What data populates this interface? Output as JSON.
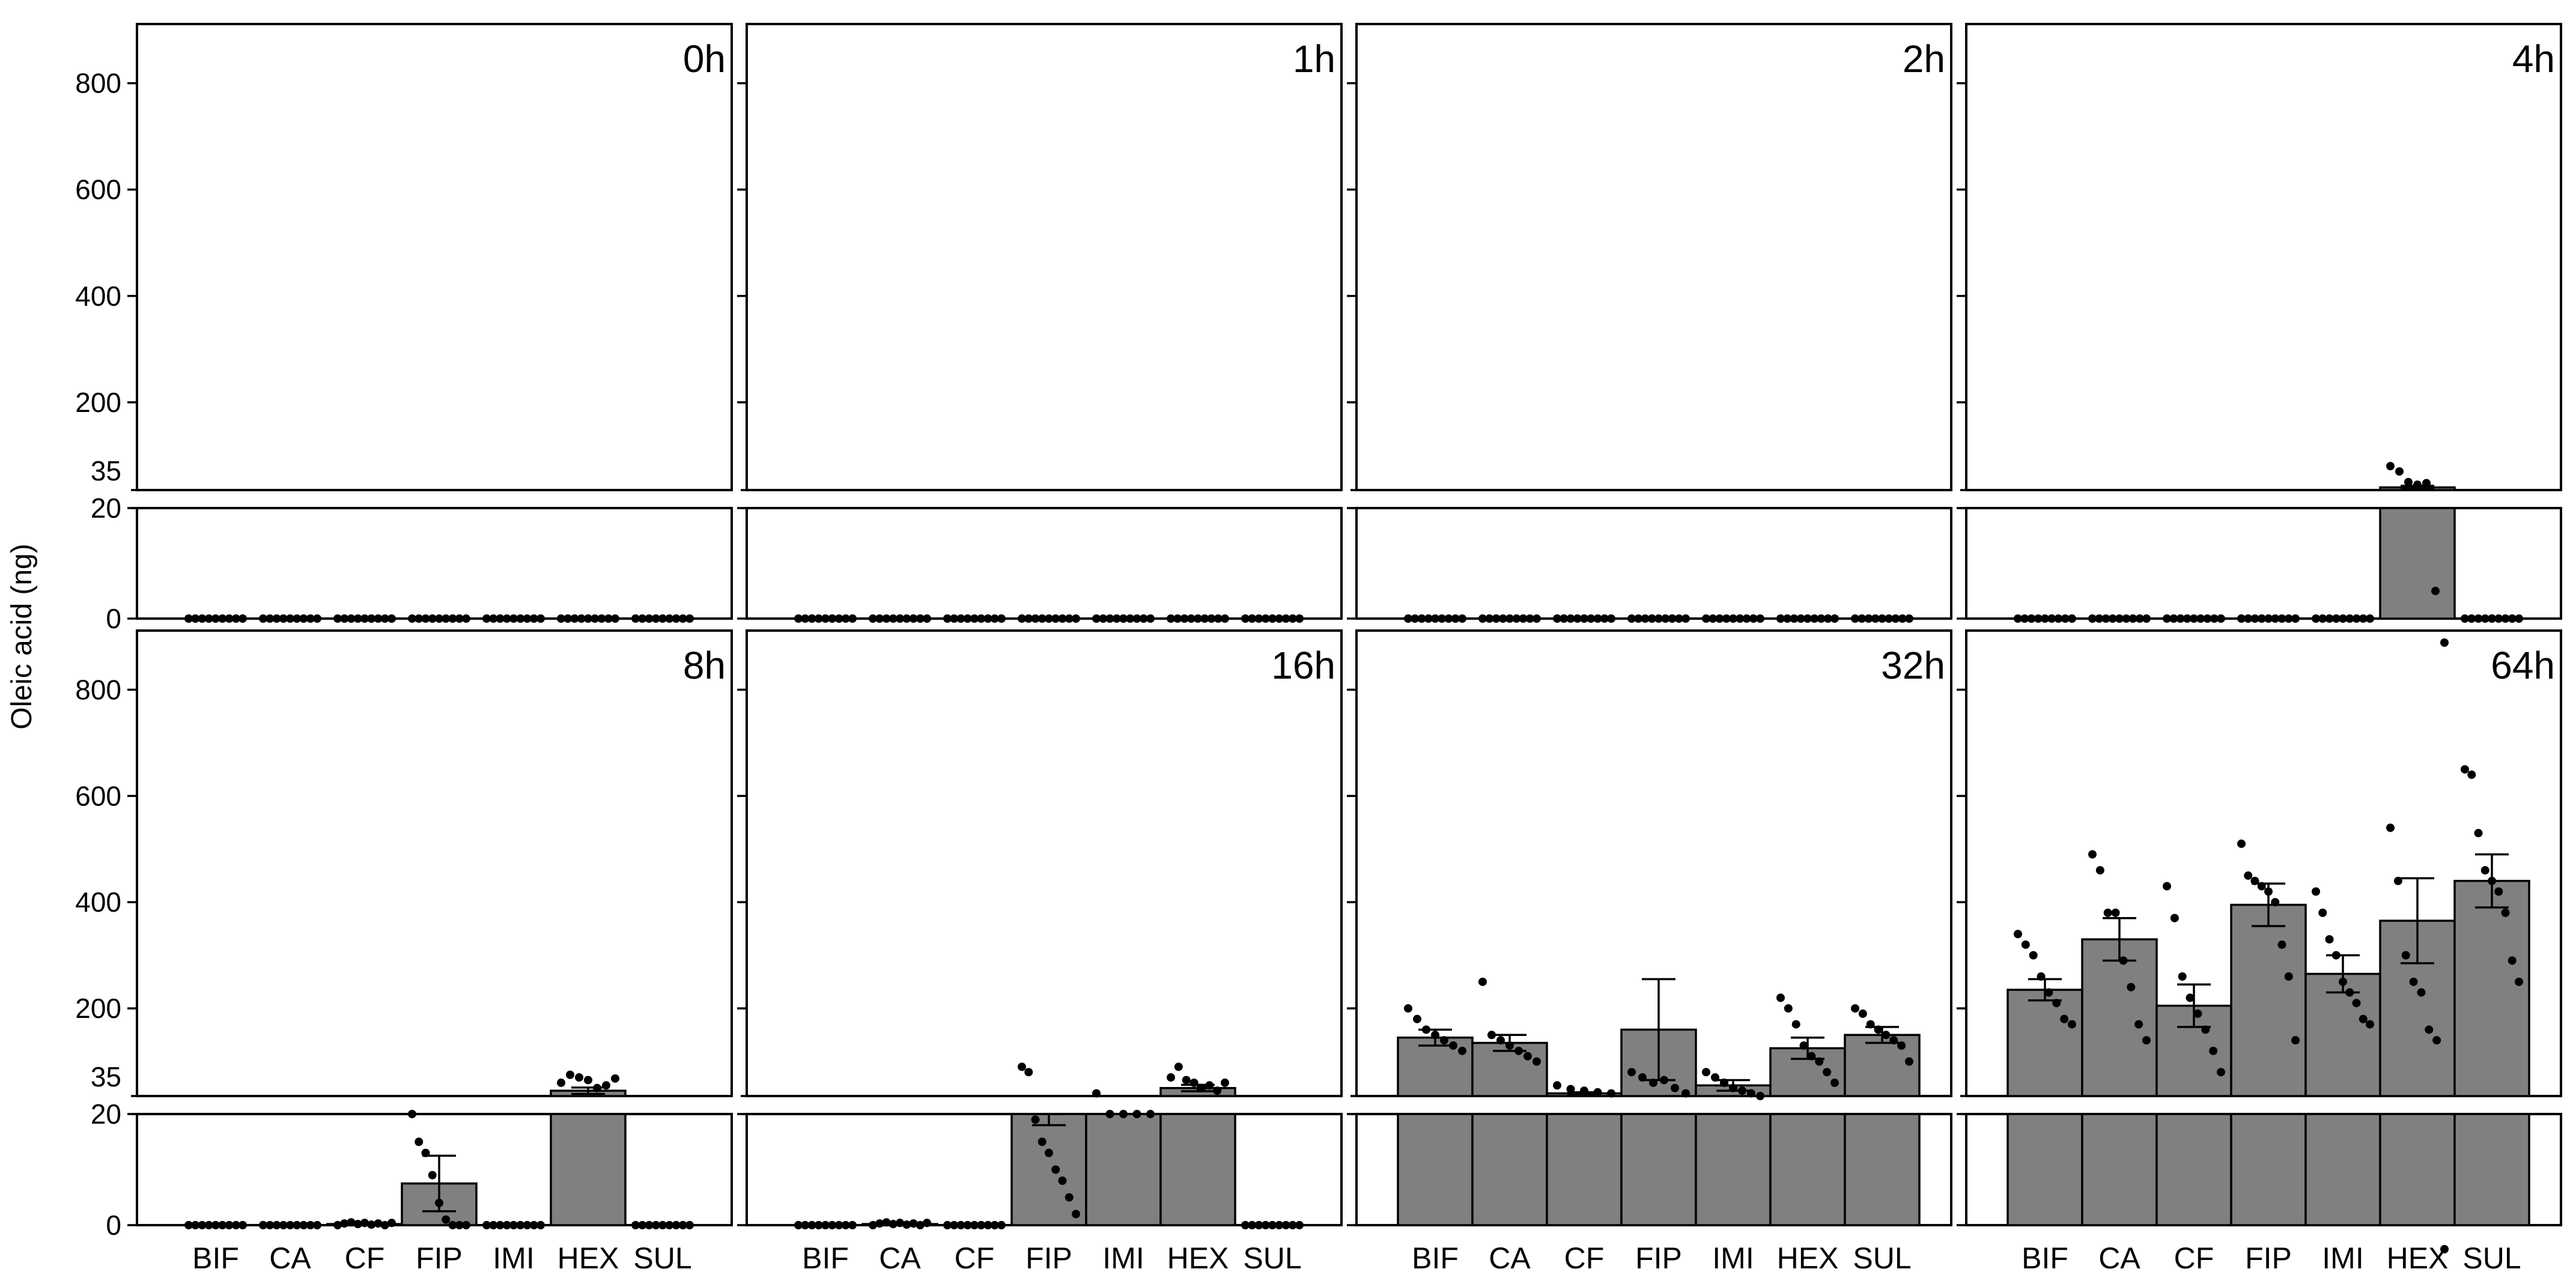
{
  "chart_data": {
    "type": "bar",
    "ylabel": "Oleic acid (ng)",
    "categories": [
      "BIF",
      "CA",
      "CF",
      "FIP",
      "IMI",
      "HEX",
      "SUL"
    ],
    "y_axis": {
      "lower_segment": {
        "range": [
          0,
          20
        ],
        "ticks": [
          "0",
          "20"
        ]
      },
      "upper_segment": {
        "range": [
          35,
          900
        ],
        "ticks": [
          "35",
          "200",
          "400",
          "600",
          "800"
        ]
      },
      "axis_break": "between 20 and 35"
    },
    "panel_layout": "2 rows x 4 columns",
    "panels": [
      {
        "label": "0h",
        "values": [
          0,
          0,
          0,
          0,
          0,
          0,
          0
        ],
        "errors": [
          0,
          0,
          0,
          0,
          0,
          0,
          0
        ],
        "points": [
          [
            0,
            0,
            0,
            0,
            0,
            0,
            0,
            0,
            0
          ],
          [
            0,
            0,
            0,
            0,
            0,
            0,
            0,
            0,
            0
          ],
          [
            0,
            0,
            0,
            0,
            0,
            0,
            0,
            0,
            0
          ],
          [
            0,
            0,
            0,
            0,
            0,
            0,
            0,
            0,
            0
          ],
          [
            0,
            0,
            0,
            0,
            0,
            0,
            0,
            0,
            0
          ],
          [
            0,
            0,
            0,
            0,
            0,
            0,
            0,
            0,
            0
          ],
          [
            0,
            0,
            0,
            0,
            0,
            0,
            0,
            0,
            0
          ]
        ]
      },
      {
        "label": "1h",
        "values": [
          0,
          0,
          0,
          0,
          0,
          0,
          0
        ],
        "errors": [
          0,
          0,
          0,
          0,
          0,
          0,
          0
        ],
        "points": [
          [
            0,
            0,
            0,
            0,
            0,
            0,
            0,
            0,
            0
          ],
          [
            0,
            0,
            0,
            0,
            0,
            0,
            0,
            0,
            0
          ],
          [
            0,
            0,
            0,
            0,
            0,
            0,
            0,
            0,
            0
          ],
          [
            0,
            0,
            0,
            0,
            0,
            0,
            0,
            0,
            0
          ],
          [
            0,
            0,
            0,
            0,
            0,
            0,
            0,
            0,
            0
          ],
          [
            0,
            0,
            0,
            0,
            0,
            0,
            0,
            0,
            0
          ],
          [
            0,
            0,
            0,
            0,
            0,
            0,
            0,
            0,
            0
          ]
        ]
      },
      {
        "label": "2h",
        "values": [
          0,
          0,
          0,
          0,
          0,
          0,
          0
        ],
        "errors": [
          0,
          0,
          0,
          0,
          0,
          0,
          0
        ],
        "points": [
          [
            0,
            0,
            0,
            0,
            0,
            0,
            0,
            0,
            0
          ],
          [
            0,
            0,
            0,
            0,
            0,
            0,
            0,
            0,
            0
          ],
          [
            0,
            0,
            0,
            0,
            0,
            0,
            0,
            0,
            0
          ],
          [
            0,
            0,
            0,
            0,
            0,
            0,
            0,
            0,
            0
          ],
          [
            0,
            0,
            0,
            0,
            0,
            0,
            0,
            0,
            0
          ],
          [
            0,
            0,
            0,
            0,
            0,
            0,
            0,
            0,
            0
          ],
          [
            0,
            0,
            0,
            0,
            0,
            0,
            0,
            0,
            0
          ]
        ]
      },
      {
        "label": "4h",
        "values": [
          0,
          0,
          0,
          0,
          0,
          40,
          0
        ],
        "errors": [
          0,
          0,
          0,
          0,
          0,
          3,
          0
        ],
        "points": [
          [
            0,
            0,
            0,
            0,
            0,
            0,
            0,
            0,
            0
          ],
          [
            0,
            0,
            0,
            0,
            0,
            0,
            0,
            0,
            0
          ],
          [
            0,
            0,
            0,
            0,
            0,
            0,
            0,
            0,
            0
          ],
          [
            0,
            0,
            0,
            0,
            0,
            0,
            0,
            0,
            0
          ],
          [
            0,
            0,
            0,
            0,
            0,
            0,
            0,
            0,
            0
          ],
          [
            80,
            70,
            50,
            45,
            48,
            5,
            -5
          ],
          [
            0,
            0,
            0,
            0,
            0,
            0,
            0,
            0,
            0
          ]
        ]
      },
      {
        "label": "8h",
        "values": [
          0,
          0,
          0.2,
          7.5,
          0,
          45,
          0
        ],
        "errors": [
          0,
          0,
          0.1,
          5,
          0,
          6,
          0
        ],
        "points": [
          [
            0,
            0,
            0,
            0,
            0,
            0,
            0,
            0,
            0
          ],
          [
            0,
            0,
            0,
            0,
            0,
            0,
            0,
            0,
            0
          ],
          [
            0,
            0.3,
            0.5,
            0.2,
            0.4,
            0.1,
            0.3,
            0,
            0.4
          ],
          [
            30,
            15,
            13,
            9,
            4,
            1,
            0,
            0,
            0
          ],
          [
            0,
            0,
            0,
            0,
            0,
            0,
            0,
            0,
            0
          ],
          [
            60,
            75,
            70,
            65,
            50,
            55,
            68
          ],
          [
            0,
            0,
            0,
            0,
            0,
            0,
            0,
            0,
            0
          ]
        ]
      },
      {
        "label": "16h",
        "values": [
          0,
          0.2,
          0,
          20,
          20,
          50,
          0
        ],
        "errors": [
          0,
          0.1,
          0,
          2,
          0,
          6,
          0
        ],
        "points": [
          [
            0,
            0,
            0,
            0,
            0,
            0,
            0,
            0,
            0
          ],
          [
            0,
            0.3,
            0.5,
            0.2,
            0.4,
            0.1,
            0.3,
            0,
            0.4
          ],
          [
            0,
            0,
            0,
            0,
            0,
            0,
            0,
            0,
            0
          ],
          [
            90,
            80,
            19,
            15,
            13,
            10,
            8,
            5,
            2
          ],
          [
            40,
            20,
            20,
            20,
            20
          ],
          [
            70,
            90,
            65,
            60,
            50,
            55,
            45,
            60
          ],
          [
            0,
            0,
            0,
            0,
            0,
            0,
            0,
            0,
            0
          ]
        ]
      },
      {
        "label": "32h",
        "values": [
          145,
          135,
          40,
          160,
          55,
          125,
          150
        ],
        "errors": [
          15,
          15,
          2,
          95,
          10,
          20,
          15
        ],
        "points": [
          [
            200,
            180,
            160,
            150,
            140,
            130,
            120
          ],
          [
            250,
            150,
            140,
            130,
            120,
            110,
            100
          ],
          [
            55,
            48,
            45,
            42,
            40
          ],
          [
            80,
            70,
            60,
            65,
            50,
            40
          ],
          [
            80,
            70,
            60,
            50,
            45,
            40,
            35
          ],
          [
            220,
            200,
            170,
            130,
            110,
            100,
            80,
            60
          ],
          [
            200,
            190,
            170,
            160,
            150,
            140,
            130,
            100
          ]
        ]
      },
      {
        "label": "64h",
        "values": [
          235,
          330,
          205,
          395,
          265,
          365,
          440
        ],
        "errors": [
          20,
          40,
          40,
          40,
          35,
          80,
          50
        ],
        "points": [
          [
            340,
            320,
            300,
            260,
            230,
            210,
            180,
            170
          ],
          [
            490,
            460,
            380,
            380,
            290,
            240,
            170,
            140
          ],
          [
            430,
            370,
            260,
            220,
            190,
            160,
            120,
            80
          ],
          [
            510,
            450,
            440,
            430,
            420,
            400,
            320,
            260,
            140
          ],
          [
            420,
            380,
            330,
            300,
            250,
            230,
            210,
            180,
            170
          ],
          [
            540,
            440,
            300,
            250,
            230,
            160,
            140,
            -5
          ],
          [
            650,
            640,
            530,
            460,
            440,
            420,
            380,
            290,
            250
          ]
        ]
      }
    ]
  }
}
